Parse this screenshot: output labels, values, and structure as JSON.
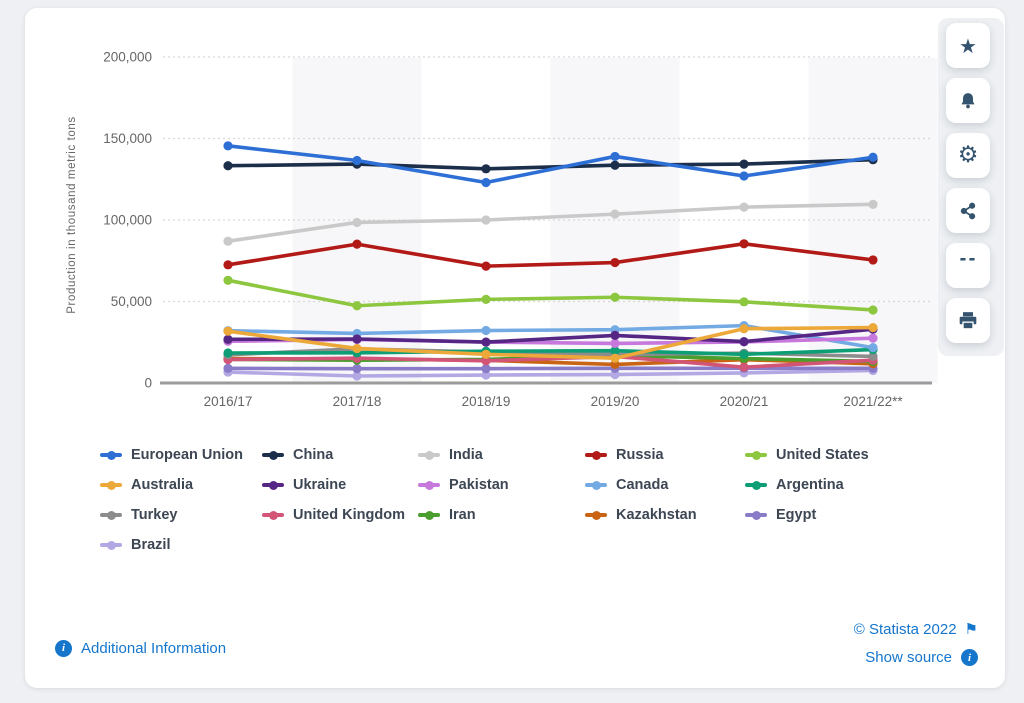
{
  "ui": {
    "footer": {
      "additional_information": "Additional Information",
      "copyright": "© Statista 2022",
      "show_source": "Show source"
    },
    "toolbar": {
      "buttons": [
        "favorite",
        "notifications",
        "settings",
        "share",
        "cite",
        "print"
      ]
    },
    "icons": {
      "star": "★",
      "gear": "⚙",
      "quote": "“",
      "flag": "⚑",
      "info": "i"
    },
    "colors": {
      "link_blue": "#1576cc",
      "axis_text": "#666666",
      "legend_text": "#3d4653"
    }
  },
  "chart_data": {
    "type": "line",
    "title": "",
    "ylabel": "Production in thousand metric tons",
    "xlabel": "",
    "ylim": [
      0,
      200000
    ],
    "yticks": [
      0,
      50000,
      100000,
      150000,
      200000
    ],
    "ytick_labels": [
      "0",
      "50,000",
      "100,000",
      "150,000",
      "200,000"
    ],
    "grid": "horizontal-dotted",
    "legend_position": "bottom",
    "categories": [
      "2016/17",
      "2017/18",
      "2018/19",
      "2019/20",
      "2020/21",
      "2021/22**"
    ],
    "series": [
      {
        "name": "European Union",
        "color": "#2e6fd6",
        "values": [
          145500,
          136500,
          123000,
          139000,
          127000,
          138500
        ]
      },
      {
        "name": "China",
        "color": "#1b2e4a",
        "values": [
          133300,
          134300,
          131400,
          133600,
          134300,
          137000
        ]
      },
      {
        "name": "India",
        "color": "#c9c9c9",
        "values": [
          87000,
          98500,
          100000,
          103600,
          107900,
          109600
        ]
      },
      {
        "name": "Russia",
        "color": "#b21a17",
        "values": [
          72500,
          85200,
          71700,
          73900,
          85400,
          75500
        ]
      },
      {
        "name": "United States",
        "color": "#8dc63f",
        "values": [
          63000,
          47400,
          51300,
          52600,
          49800,
          44800
        ]
      },
      {
        "name": "Australia",
        "color": "#eda83a",
        "values": [
          31800,
          21200,
          17600,
          15200,
          33300,
          34000
        ]
      },
      {
        "name": "Ukraine",
        "color": "#562685",
        "values": [
          26800,
          27000,
          25100,
          29200,
          25400,
          33000
        ]
      },
      {
        "name": "Pakistan",
        "color": "#c678dd",
        "values": [
          25600,
          26700,
          25100,
          24300,
          25200,
          27500
        ]
      },
      {
        "name": "Canada",
        "color": "#74aae3",
        "values": [
          32100,
          30400,
          32200,
          32700,
          35200,
          21700
        ]
      },
      {
        "name": "Argentina",
        "color": "#0d9e76",
        "values": [
          18400,
          18500,
          19500,
          19800,
          17600,
          20500
        ]
      },
      {
        "name": "Turkey",
        "color": "#8c8c8c",
        "values": [
          17300,
          21000,
          19000,
          17500,
          18300,
          16300
        ]
      },
      {
        "name": "United Kingdom",
        "color": "#d25476",
        "values": [
          14400,
          15200,
          13600,
          16300,
          9700,
          14000
        ]
      },
      {
        "name": "Iran",
        "color": "#4a9e2d",
        "values": [
          14500,
          14000,
          14500,
          16800,
          15000,
          13200
        ]
      },
      {
        "name": "Kazakhstan",
        "color": "#c96414",
        "values": [
          15000,
          14800,
          13900,
          11400,
          14300,
          11800
        ]
      },
      {
        "name": "Egypt",
        "color": "#8a7bc8",
        "values": [
          9000,
          8800,
          8800,
          9000,
          9000,
          9000
        ]
      },
      {
        "name": "Brazil",
        "color": "#b3a8e3",
        "values": [
          6700,
          4300,
          4900,
          5200,
          6200,
          7700
        ]
      }
    ]
  }
}
